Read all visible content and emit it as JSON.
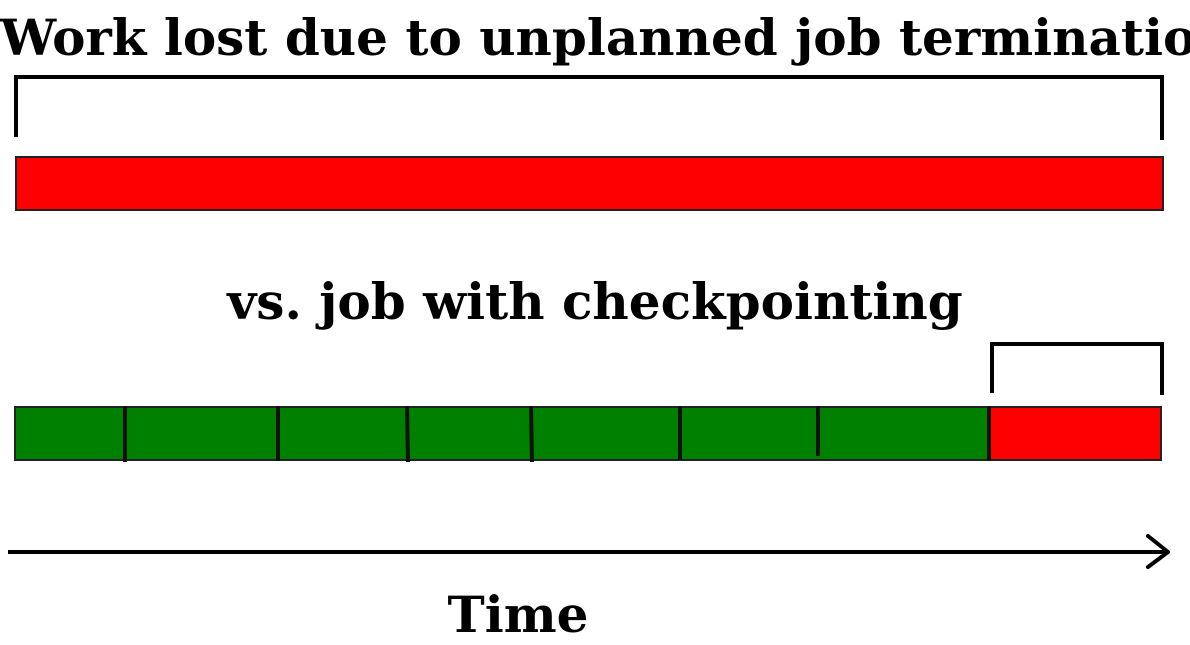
{
  "top_label": "Work lost due to unplanned job termination",
  "mid_label": "vs. job with checkpointing",
  "axis_label": "Time",
  "colors": {
    "lost_work": "#ff0000",
    "checkpointed_work": "#008000",
    "outline": "#000000"
  },
  "checkpoint_job": {
    "checkpoint_segments": 7,
    "lost_segment": "final segment after last checkpoint"
  }
}
